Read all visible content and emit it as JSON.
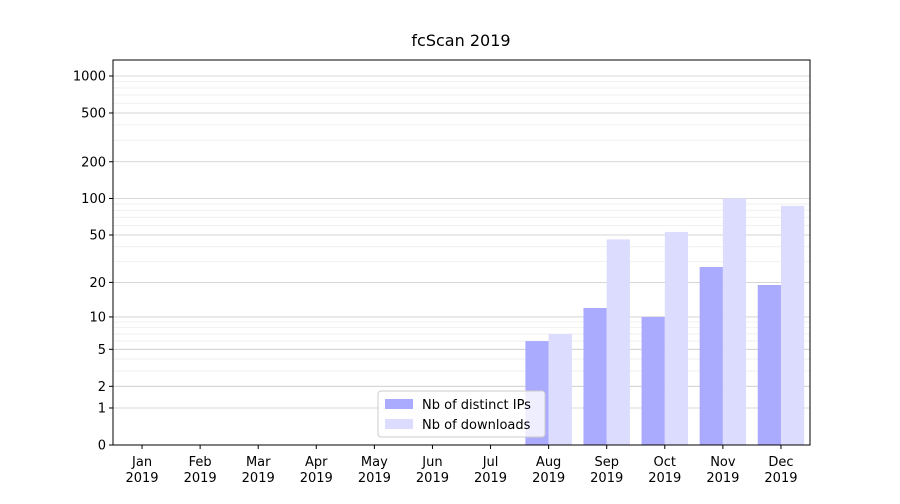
{
  "chart_data": {
    "type": "bar",
    "title": "fcScan 2019",
    "categories": [
      "Jan\n2019",
      "Feb\n2019",
      "Mar\n2019",
      "Apr\n2019",
      "May\n2019",
      "Jun\n2019",
      "Jul\n2019",
      "Aug\n2019",
      "Sep\n2019",
      "Oct\n2019",
      "Nov\n2019",
      "Dec\n2019"
    ],
    "series": [
      {
        "name": "Nb of distinct IPs",
        "color": "#aaaaff",
        "values": [
          0,
          0,
          0,
          0,
          0,
          0,
          0,
          6,
          12,
          10,
          27,
          19
        ]
      },
      {
        "name": "Nb of downloads",
        "color": "#dcdcff",
        "values": [
          0,
          0,
          0,
          0,
          0,
          0,
          0,
          7,
          46,
          53,
          100,
          87
        ]
      }
    ],
    "yscale": "log1p",
    "ylim": [
      0,
      1350
    ],
    "yticks": [
      0,
      1,
      2,
      5,
      10,
      20,
      50,
      100,
      200,
      500,
      1000
    ],
    "grid": true,
    "legend": "lower center"
  }
}
